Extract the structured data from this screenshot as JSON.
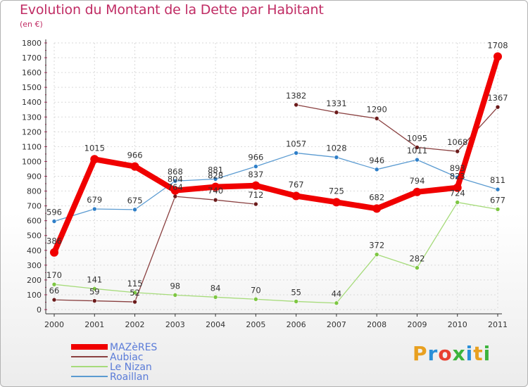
{
  "header": {
    "title": "Evolution du Montant de la Dette par Habitant",
    "subtitle": "(en €)"
  },
  "logo": {
    "text": "Proxiti",
    "colors": [
      "#e8a020",
      "#2a8fd8",
      "#e84030",
      "#3cb43c",
      "#2a8fd8",
      "#e8a020",
      "#3cb43c"
    ]
  },
  "chart_data": {
    "type": "line",
    "title": "Evolution du Montant de la Dette par Habitant",
    "subtitle": "(en €)",
    "xlabel": "",
    "ylabel": "",
    "x": [
      "2000",
      "2001",
      "2002",
      "2003",
      "2004",
      "2005",
      "2006",
      "2007",
      "2008",
      "2009",
      "2010",
      "2011"
    ],
    "ylim": [
      0,
      1800
    ],
    "yticks": [
      0,
      100,
      200,
      300,
      400,
      500,
      600,
      700,
      800,
      900,
      1000,
      1100,
      1200,
      1300,
      1400,
      1500,
      1600,
      1700,
      1800
    ],
    "grid": true,
    "legend_position": "bottom-left",
    "series": [
      {
        "name": "Roaillan",
        "color": "#5b9bd1",
        "marker": "#2f7fc8",
        "width": 1.3,
        "values": [
          596,
          679,
          675,
          868,
          881,
          966,
          1057,
          1028,
          946,
          1011,
          893,
          811
        ]
      },
      {
        "name": "Le Nizan",
        "color": "#a6db7a",
        "marker": "#7dc642",
        "width": 1.3,
        "values": [
          170,
          141,
          115,
          98,
          84,
          70,
          55,
          44,
          372,
          282,
          724,
          677
        ]
      },
      {
        "name": "Aubiac",
        "color": "#8a4040",
        "marker": "#6b1a1a",
        "width": 1.3,
        "values": [
          66,
          59,
          52,
          764,
          740,
          712,
          null,
          null,
          null,
          null,
          null,
          null
        ],
        "values_segment2": [
          null,
          null,
          null,
          null,
          null,
          null,
          1382,
          1331,
          1290,
          1095,
          1068,
          1367
        ]
      },
      {
        "name": "MAZèRES",
        "color": "#f00000",
        "marker": "#f00000",
        "width": 8,
        "values": [
          386,
          1015,
          966,
          804,
          828,
          837,
          767,
          725,
          682,
          794,
          823,
          1708
        ]
      }
    ],
    "data_labels": {
      "MAZèRES": [
        "386",
        "1015",
        "966",
        "804",
        "828",
        "837",
        "767",
        "725",
        "682",
        "794",
        "823",
        "1708"
      ],
      "Roaillan": [
        "596",
        "679",
        "675",
        "868",
        "881",
        "966",
        "1057",
        "1028",
        "946",
        "1011",
        "893",
        "811"
      ],
      "Le Nizan": [
        "170",
        "141",
        "115",
        "98",
        "84",
        "70",
        "55",
        "44",
        "372",
        "282",
        "724",
        "677"
      ],
      "Aubiac": [
        "66",
        "59",
        "52",
        "764",
        "740",
        "712",
        "1382",
        "1331",
        "1290",
        "1095",
        "1068",
        "1367"
      ]
    }
  }
}
